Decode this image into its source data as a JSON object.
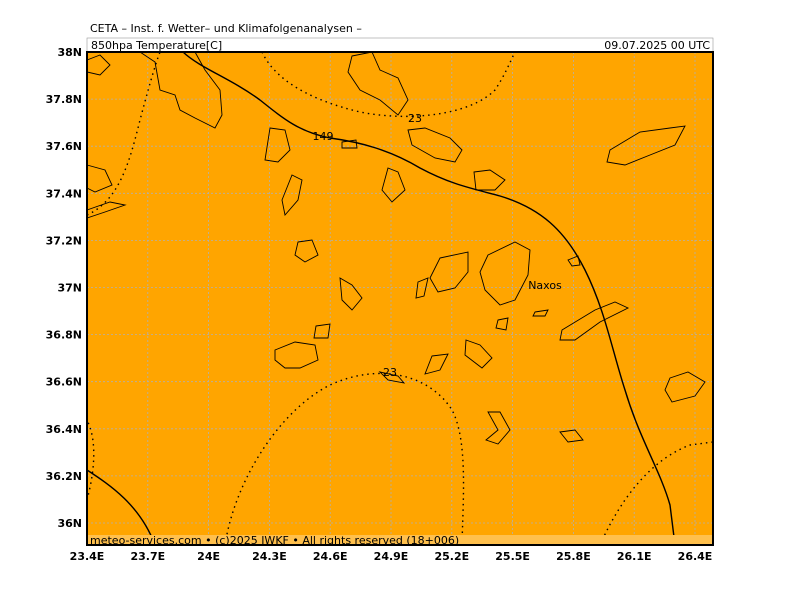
{
  "header": {
    "title": "CETA – Inst. f. Wetter– und Klimafolgenanalysen –",
    "variable": "850hpa Temperature[C]",
    "valid": "09.07.2025 00 UTC"
  },
  "map": {
    "lon_labels": [
      "23.4E",
      "23.7E",
      "24E",
      "24.3E",
      "24.6E",
      "24.9E",
      "25.2E",
      "25.5E",
      "25.8E",
      "26.1E",
      "26.4E"
    ],
    "lat_labels": [
      "38N",
      "37.8N",
      "37.6N",
      "37.4N",
      "37.2N",
      "37N",
      "36.8N",
      "36.6N",
      "36.4N",
      "36.2N",
      "36N"
    ],
    "contour_labels": [
      "149",
      "23",
      "23"
    ],
    "place": "Naxos"
  },
  "footer": "meteo-services.com • (c)2025 IWKF • All rights reserved (18+006)"
}
